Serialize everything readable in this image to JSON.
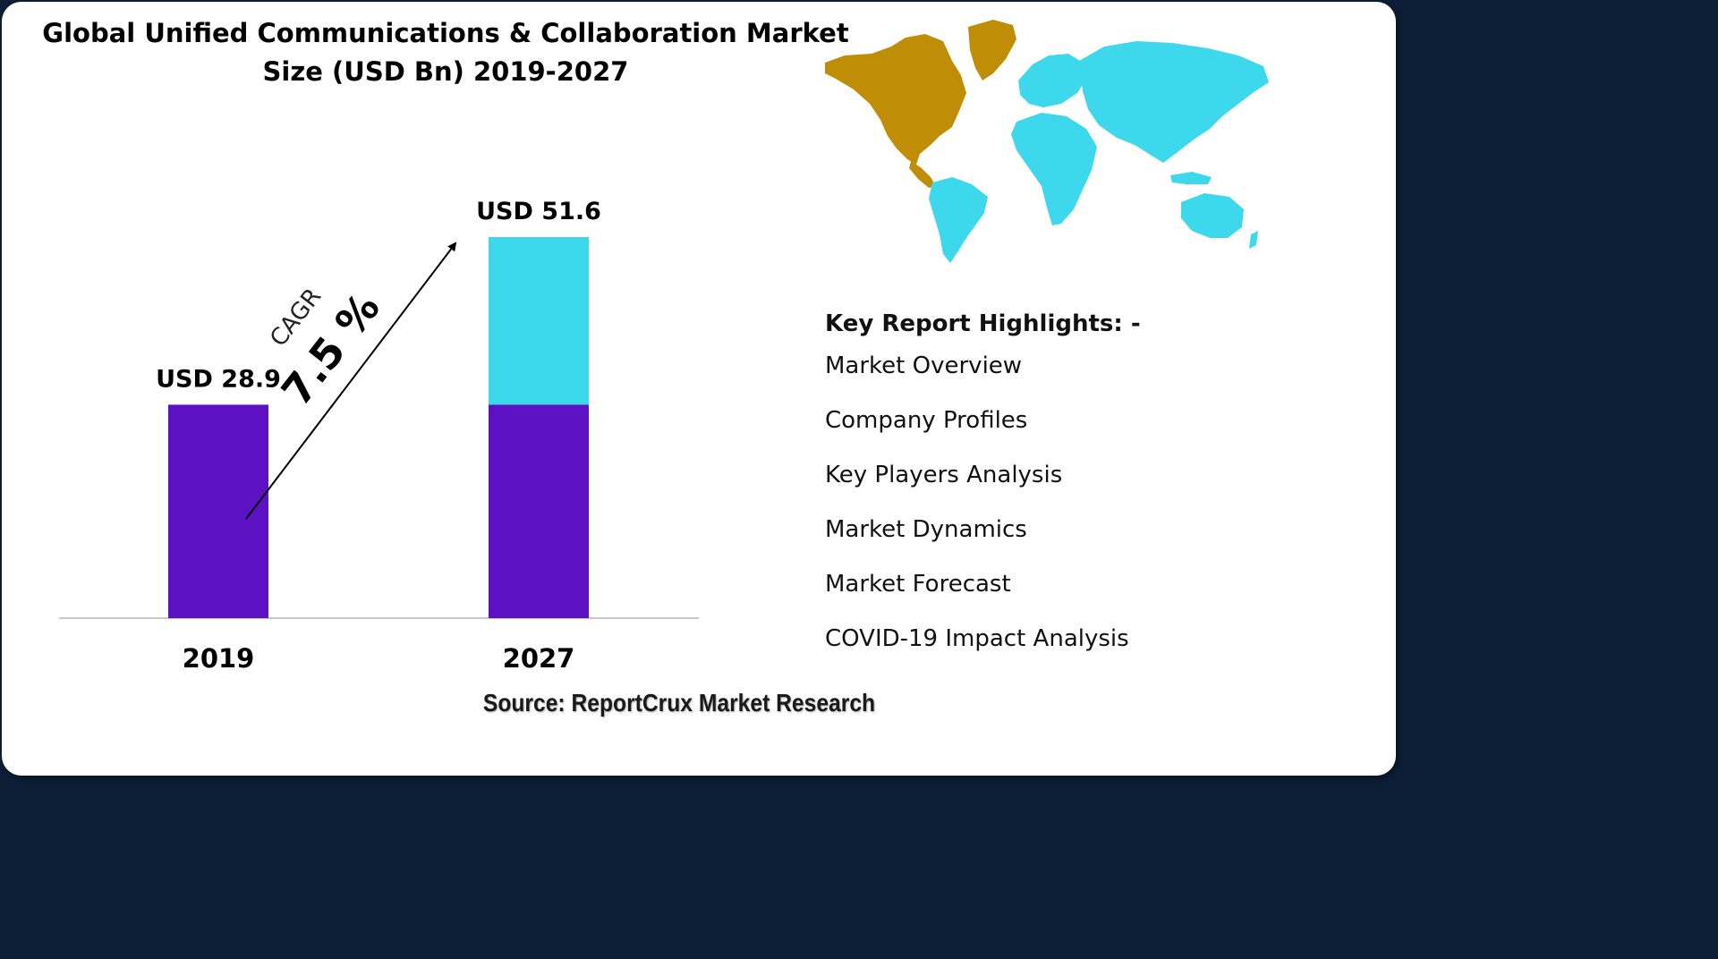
{
  "title_line1": "Global Unified Communications & Collaboration Market",
  "title_line2": "Size (USD Bn) 2019-2027",
  "colors": {
    "base_bar": "#5c12c2",
    "growth_bar": "#3dd8ec",
    "map_americas": "#bf8e06",
    "map_rest": "#3dd8ec",
    "axis": "#c8c8c8"
  },
  "chart_data": {
    "type": "bar",
    "categories": [
      "2019",
      "2027"
    ],
    "values": [
      28.9,
      51.6
    ],
    "value_labels": [
      "USD 28.9",
      "USD 51.6"
    ],
    "ylim": [
      0,
      60
    ],
    "grid": false,
    "cagr_label": "CAGR",
    "cagr_value": "7.5 %"
  },
  "highlights": {
    "heading": "Key Report Highlights: -",
    "items": [
      "Market Overview",
      "Company Profiles",
      "Key Players Analysis",
      "Market Dynamics",
      "Market Forecast",
      "COVID-19 Impact Analysis"
    ]
  },
  "source": "Source: ReportCrux Market Research",
  "map_icon": "world-map-icon"
}
